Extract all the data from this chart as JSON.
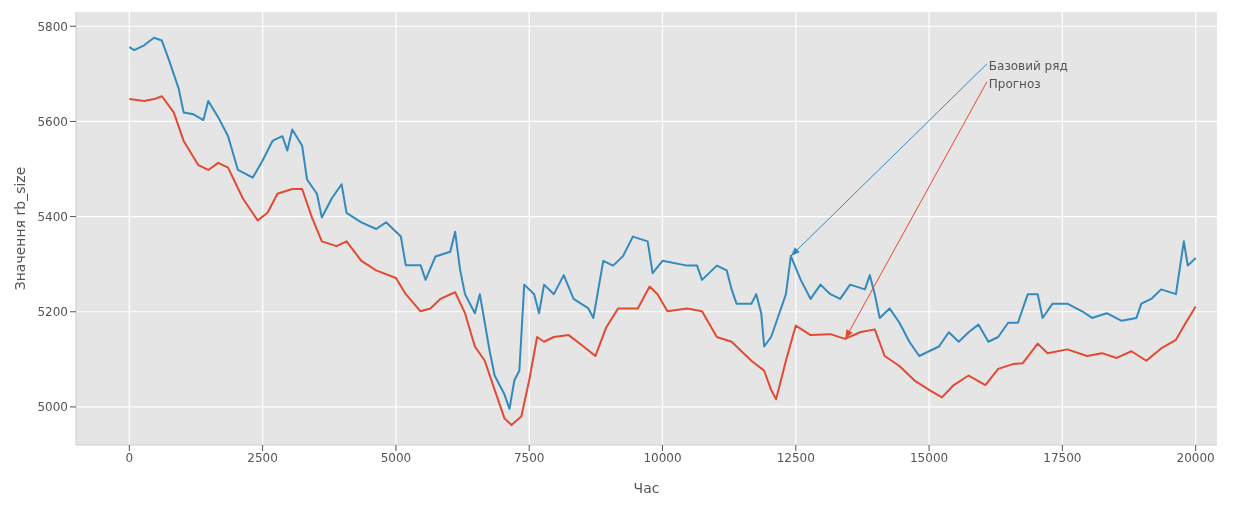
{
  "chart_data": {
    "type": "line",
    "xlabel": "Час",
    "ylabel": "Значення rb_size",
    "xlim": [
      -1000,
      20400
    ],
    "xticks": [
      0,
      2500,
      5000,
      7500,
      10000,
      12500,
      15000,
      17500,
      20000
    ],
    "ylim": [
      4920,
      5830
    ],
    "yticks": [
      5000,
      5200,
      5400,
      5600,
      5800
    ],
    "grid": true,
    "series": [
      {
        "color": "#348abd",
        "x": [
          0,
          93,
          278,
          463,
          611,
          741,
          926,
          1019,
          1204,
          1389,
          1481,
          1667,
          1852,
          2037,
          2315,
          2500,
          2685,
          2870,
          2963,
          3056,
          3241,
          3333,
          3519,
          3611,
          3796,
          3981,
          4074,
          4352,
          4630,
          4815,
          5093,
          5185,
          5463,
          5556,
          5741,
          6019,
          6111,
          6204,
          6296,
          6481,
          6574,
          6759,
          6852,
          7037,
          7130,
          7222,
          7315,
          7407,
          7593,
          7685,
          7778,
          7963,
          8148,
          8333,
          8611,
          8704,
          8796,
          8889,
          9074,
          9259,
          9444,
          9722,
          9815,
          10000,
          10463,
          10648,
          10741,
          10926,
          11019,
          11204,
          11296,
          11389,
          11667,
          11759,
          11852,
          11907,
          12037,
          12130,
          12315,
          12407,
          12593,
          12778,
          12963,
          13148,
          13333,
          13519,
          13796,
          13889,
          13981,
          14074,
          14259,
          14444,
          14630,
          14815,
          15000,
          15185,
          15370,
          15556,
          15741,
          15926,
          16111,
          16296,
          16482,
          16667,
          16759,
          16852,
          17037,
          17130,
          17315,
          17593,
          17870,
          18056,
          18333,
          18611,
          18889,
          18981,
          19167,
          19352,
          19630,
          19778,
          19852,
          20000
        ],
        "values": [
          5756,
          5750,
          5760,
          5776,
          5770,
          5730,
          5669,
          5619,
          5615,
          5603,
          5643,
          5609,
          5569,
          5498,
          5482,
          5518,
          5559,
          5569,
          5539,
          5583,
          5549,
          5478,
          5448,
          5398,
          5438,
          5468,
          5408,
          5388,
          5374,
          5388,
          5358,
          5298,
          5298,
          5267,
          5316,
          5326,
          5368,
          5288,
          5237,
          5197,
          5237,
          5117,
          5066,
          5026,
          4996,
          5056,
          5076,
          5257,
          5237,
          5197,
          5257,
          5237,
          5277,
          5227,
          5207,
          5187,
          5247,
          5307,
          5297,
          5317,
          5358,
          5348,
          5281,
          5307,
          5297,
          5297,
          5267,
          5287,
          5297,
          5287,
          5247,
          5217,
          5217,
          5237,
          5197,
          5127,
          5147,
          5177,
          5237,
          5317,
          5267,
          5227,
          5257,
          5237,
          5227,
          5257,
          5247,
          5277,
          5237,
          5187,
          5207,
          5177,
          5137,
          5107,
          5117,
          5127,
          5157,
          5137,
          5157,
          5173,
          5137,
          5147,
          5177,
          5177,
          5207,
          5237,
          5237,
          5187,
          5217,
          5217,
          5201,
          5187,
          5197,
          5181,
          5187,
          5217,
          5227,
          5247,
          5237,
          5348,
          5297,
          5313
        ]
      },
      {
        "color": "#e24a33",
        "x": [
          0,
          278,
          463,
          611,
          833,
          1019,
          1296,
          1481,
          1667,
          1852,
          2130,
          2407,
          2593,
          2778,
          3056,
          3241,
          3426,
          3611,
          3889,
          4074,
          4352,
          4630,
          5000,
          5185,
          5463,
          5648,
          5833,
          6111,
          6296,
          6481,
          6667,
          6852,
          7037,
          7167,
          7352,
          7500,
          7648,
          7778,
          7963,
          8241,
          8519,
          8741,
          8944,
          9167,
          9537,
          9759,
          9907,
          10093,
          10463,
          10741,
          11019,
          11296,
          11667,
          11907,
          12037,
          12130,
          12315,
          12500,
          12778,
          13148,
          13426,
          13704,
          13981,
          14167,
          14444,
          14722,
          15000,
          15241,
          15463,
          15741,
          16056,
          16296,
          16574,
          16759,
          17037,
          17222,
          17593,
          17963,
          18241,
          18519,
          18796,
          19074,
          19352,
          19630,
          19815,
          20000
        ],
        "values": [
          5647,
          5643,
          5647,
          5653,
          5619,
          5559,
          5508,
          5498,
          5513,
          5503,
          5438,
          5392,
          5408,
          5448,
          5458,
          5458,
          5398,
          5348,
          5338,
          5348,
          5307,
          5287,
          5271,
          5237,
          5201,
          5207,
          5227,
          5241,
          5197,
          5127,
          5097,
          5036,
          4976,
          4962,
          4980,
          5056,
          5147,
          5137,
          5147,
          5151,
          5127,
          5107,
          5167,
          5207,
          5207,
          5253,
          5237,
          5201,
          5207,
          5201,
          5147,
          5137,
          5097,
          5076,
          5036,
          5016,
          5097,
          5171,
          5151,
          5153,
          5143,
          5157,
          5163,
          5107,
          5086,
          5056,
          5036,
          5020,
          5046,
          5066,
          5046,
          5080,
          5090,
          5092,
          5133,
          5113,
          5121,
          5107,
          5113,
          5103,
          5117,
          5097,
          5123,
          5141,
          5177,
          5211
        ]
      }
    ],
    "annotations": [
      {
        "text": "Базовий ряд",
        "x": 12407,
        "y": 5317
      },
      {
        "text": "Прогноз",
        "x": 13426,
        "y": 5143
      }
    ]
  }
}
